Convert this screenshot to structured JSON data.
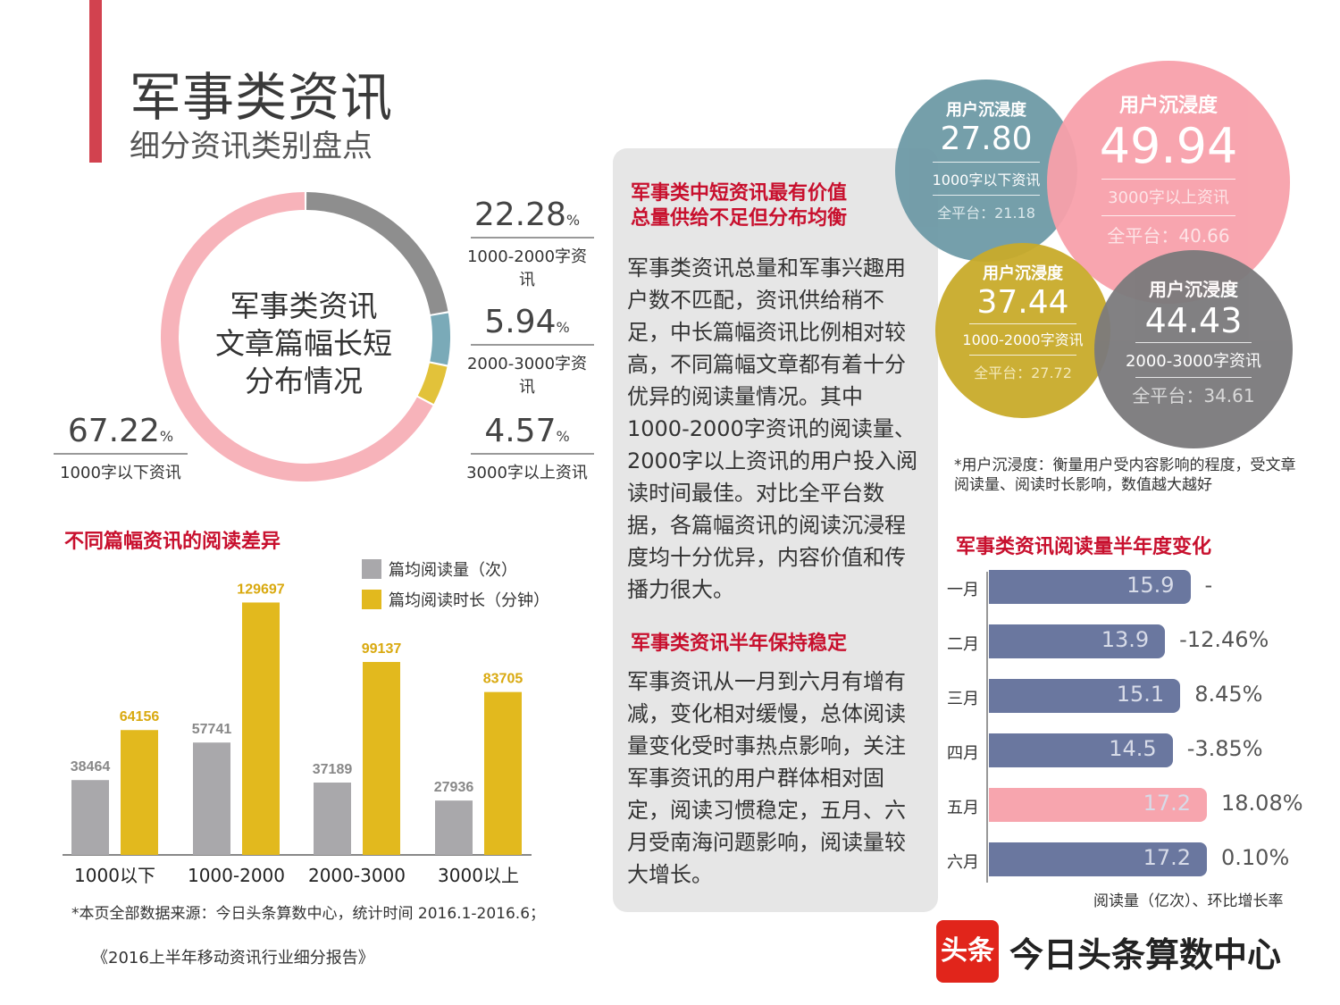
{
  "header": {
    "title": "军事类资讯",
    "subtitle": "细分资讯类别盘点"
  },
  "donut": {
    "center_lines": [
      "军事类资讯",
      "文章篇幅长短",
      "分布情况"
    ],
    "pct_sign": "%",
    "colors": {
      "pink": "#f7b3ba",
      "gray": "#8e8e8e",
      "teal": "#7aaab8",
      "gold": "#e2c23a"
    }
  },
  "chart_data": [
    {
      "type": "pie",
      "title": "军事类资讯文章篇幅长短分布情况",
      "slices": [
        {
          "label": "1000字以下资讯",
          "value": 67.22,
          "color": "#f7b3ba"
        },
        {
          "label": "1000-2000字资讯",
          "value": 22.28,
          "color": "#8e8e8e"
        },
        {
          "label": "2000-3000字资讯",
          "value": 5.94,
          "color": "#7aaab8"
        },
        {
          "label": "3000字以上资讯",
          "value": 4.57,
          "color": "#e2c23a"
        }
      ]
    },
    {
      "type": "bar",
      "title": "不同篇幅资讯的阅读差异",
      "categories": [
        "1000以下",
        "1000-2000",
        "2000-3000",
        "3000以上"
      ],
      "series": [
        {
          "name": "篇均阅读量（次）",
          "values": [
            38464,
            57741,
            37189,
            27936
          ],
          "color": "#a9a8ab"
        },
        {
          "name": "篇均阅读时长（分钟）",
          "values": [
            64156,
            129697,
            99137,
            83705
          ],
          "color": "#e2b91e"
        }
      ],
      "ylim": [
        0,
        140000
      ]
    },
    {
      "type": "bar",
      "orientation": "horizontal",
      "title": "军事类资讯阅读量半年度变化",
      "categories": [
        "一月",
        "二月",
        "三月",
        "四月",
        "五月",
        "六月"
      ],
      "values": [
        15.9,
        13.9,
        15.1,
        14.5,
        17.2,
        17.2
      ],
      "rates": [
        "-",
        "-12.46%",
        "8.45%",
        "-3.85%",
        "18.08%",
        "0.10%"
      ],
      "highlight_index": 4,
      "colors": {
        "normal": "#6a779f",
        "highlight": "#f7a5ae"
      },
      "xlabel": "阅读量（亿次）、环比增长率",
      "xlim": [
        0,
        17.2
      ]
    }
  ],
  "panel": {
    "title1_line1": "军事类中短资讯最有价值",
    "title1_line2": "总量供给不足但分布均衡",
    "body1": "军事类资讯总量和军事兴趣用户数不匹配，资讯供给稍不足，中长篇幅资讯比例相对较高，不同篇幅文章都有着十分优异的阅读量情况。其中1000-2000字资讯的阅读量、2000字以上资讯的用户投入阅读时间最佳。对比全平台数据，各篇幅资讯的阅读沉浸程度均十分优异，内容价值和传播力很大。",
    "title2": "军事类资讯半年保持稳定",
    "body2": "军事资讯从一月到六月有增有减，变化相对缓慢，总体阅读量变化受时事热点影响，关注军事资讯的用户群体相对固定，阅读习惯稳定，五月、六月受南海问题影响，阅读量较大增长。"
  },
  "bubbles": [
    {
      "label": "用户沉浸度",
      "value": "27.80",
      "type": "1000字以下资讯",
      "platform": "全平台：21.18",
      "color": "#6e9aa6"
    },
    {
      "label": "用户沉浸度",
      "value": "49.94",
      "type": "3000字以上资讯",
      "platform": "全平台：40.66",
      "color": "#f8a1ab"
    },
    {
      "label": "用户沉浸度",
      "value": "37.44",
      "type": "1000-2000字资讯",
      "platform": "全平台：27.72",
      "color": "#c9ab2b"
    },
    {
      "label": "用户沉浸度",
      "value": "44.43",
      "type": "2000-3000字资讯",
      "platform": "全平台：34.61",
      "color": "#7b7a7c"
    }
  ],
  "immersion_note": "*用户沉浸度：衡量用户受内容影响的程度，受文章阅读量、阅读时长影响，数值越大越好",
  "footer": {
    "source": "*本页全部数据来源：今日头条算数中心，统计时间 2016.1-2016.6；",
    "report": "《2016上半年移动资讯行业细分报告》",
    "logo_mark": "头条",
    "logo_text": "今日头条算数中心"
  }
}
